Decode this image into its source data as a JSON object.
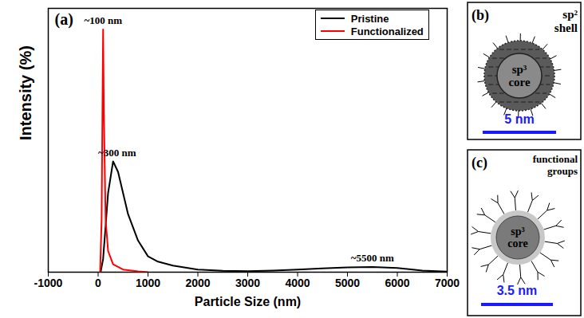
{
  "chart_data": {
    "type": "line",
    "title": "(a)",
    "x_label": "Particle Size (nm)",
    "y_label": "Intensity (%)",
    "xlim": [
      -1000,
      7000
    ],
    "xticks": [
      -1000,
      0,
      1000,
      2000,
      3000,
      4000,
      5000,
      6000,
      7000
    ],
    "ylim": [
      0,
      100
    ],
    "tick_labels": "x",
    "grid": false,
    "legend": "top-right",
    "series": [
      {
        "name": "Pristine",
        "color": "#000000",
        "x": [
          50,
          100,
          200,
          300,
          400,
          500,
          600,
          800,
          1000,
          1200,
          1500,
          2000,
          2500,
          3000,
          3500,
          4000,
          4500,
          5000,
          5500,
          6000,
          6500,
          7000
        ],
        "values": [
          0,
          5,
          30,
          42,
          38,
          30,
          22,
          12,
          6,
          4,
          2.5,
          1,
          0.5,
          0.4,
          0.6,
          1,
          1.4,
          1.8,
          2,
          1.6,
          0.6,
          0.2
        ]
      },
      {
        "name": "Functionalized",
        "color": "#ff0000",
        "x": [
          40,
          70,
          90,
          100,
          115,
          150,
          200,
          300,
          500,
          800,
          1000
        ],
        "values": [
          0,
          20,
          70,
          92,
          60,
          20,
          8,
          3,
          1,
          0.3,
          0
        ]
      }
    ],
    "annotations": [
      {
        "text": "~100 nm",
        "x": 100,
        "y": 94
      },
      {
        "text": "~300 nm",
        "x": 380,
        "y": 44
      },
      {
        "text": "~5500 nm",
        "x": 5500,
        "y": 4
      }
    ]
  },
  "panels": [
    {
      "letter": "(b)",
      "shell_label": "sp² shell",
      "core_label": "sp³ core",
      "scale_bar": "5 nm"
    },
    {
      "letter": "(c)",
      "shell_label": "functional groups",
      "core_label": "sp³ core",
      "scale_bar": "3.5 nm"
    }
  ]
}
